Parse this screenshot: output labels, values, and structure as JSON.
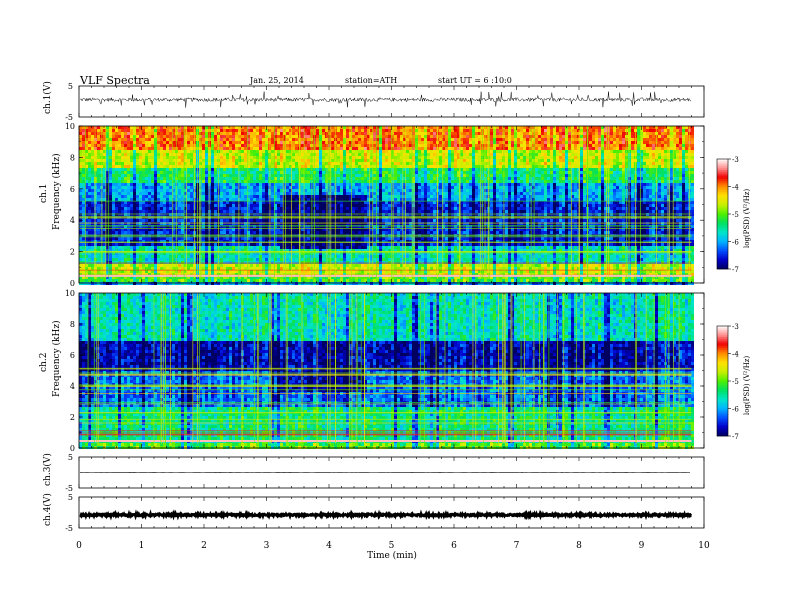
{
  "header": {
    "title": "VLF  Spectra",
    "date": "Jan. 25, 2014",
    "station": "station=ATH",
    "start": "start  UT  =   6  :10:0"
  },
  "chart_data": [
    {
      "type": "line",
      "panel": "ch1",
      "ylabel": "ch.1(V)",
      "ylim": [
        -5,
        5
      ],
      "yticks": [
        "5",
        "-5"
      ],
      "x_range_min": [
        0,
        9.8
      ],
      "baseline_v": 0.6,
      "noise_amplitude_v": 0.6
    },
    {
      "type": "heatmap",
      "panel": "spec1",
      "ylabel": "ch.1\nFrequency (kHz)",
      "ylim": [
        0,
        10
      ],
      "yticks": [
        "0",
        "2",
        "4",
        "6",
        "8",
        "10"
      ],
      "x_range_min": [
        0,
        9.8
      ],
      "colorbar": {
        "label": "log(PSD) (V²/Hz)",
        "range": [
          -7,
          -3
        ],
        "ticks": [
          "-3",
          "-4",
          "-5",
          "-6",
          "-7"
        ]
      },
      "bands_khz": [
        {
          "from": 0,
          "to": 0.4,
          "level": -5.0
        },
        {
          "from": 0.4,
          "to": 1.2,
          "level": -4.6
        },
        {
          "from": 1.2,
          "to": 2.4,
          "level": -5.6
        },
        {
          "from": 2.4,
          "to": 5.2,
          "level": -6.5
        },
        {
          "from": 5.2,
          "to": 6.4,
          "level": -6.0
        },
        {
          "from": 6.4,
          "to": 7.4,
          "level": -5.3
        },
        {
          "from": 7.4,
          "to": 8.5,
          "level": -4.6
        },
        {
          "from": 8.5,
          "to": 10,
          "level": -3.9
        }
      ],
      "event": {
        "from_min": 3.2,
        "to_min": 4.6,
        "from_khz": 2.2,
        "to_khz": 5.6,
        "level": -6.9
      }
    },
    {
      "type": "heatmap",
      "panel": "spec2",
      "ylabel": "ch.2\nFrequency (kHz)",
      "ylim": [
        0,
        10
      ],
      "yticks": [
        "0",
        "2",
        "4",
        "6",
        "8",
        "10"
      ],
      "x_range_min": [
        0,
        9.8
      ],
      "colorbar": {
        "label": "log(PSD) (V²/Hz)",
        "range": [
          -7,
          -3
        ],
        "ticks": [
          "-3",
          "-4",
          "-5",
          "-6",
          "-7"
        ]
      },
      "bands_khz": [
        {
          "from": 0,
          "to": 0.4,
          "level": -5.0
        },
        {
          "from": 0.4,
          "to": 2.6,
          "level": -5.4
        },
        {
          "from": 2.6,
          "to": 5.0,
          "level": -6.2
        },
        {
          "from": 5.0,
          "to": 7.0,
          "level": -6.7
        },
        {
          "from": 7.0,
          "to": 10,
          "level": -5.6
        }
      ],
      "event": {
        "from_min": 3.2,
        "to_min": 4.6,
        "from_khz": 3.6,
        "to_khz": 5.0,
        "level": -6.8
      }
    },
    {
      "type": "line",
      "panel": "ch3",
      "ylabel": "ch.3(V)",
      "ylim": [
        -5,
        5
      ],
      "yticks": [
        "5",
        "-5"
      ],
      "x_range_min": [
        0,
        9.8
      ],
      "baseline_v": 0.0,
      "noise_amplitude_v": 0.05
    },
    {
      "type": "line",
      "panel": "ch4",
      "ylabel": "ch.4(V)",
      "ylim": [
        -5,
        5
      ],
      "yticks": [
        "5",
        "-5"
      ],
      "x_range_min": [
        0,
        9.8
      ],
      "baseline_v": -0.8,
      "noise_amplitude_v": 0.3
    }
  ],
  "xaxis": {
    "label": "Time  (min)",
    "range": [
      0,
      10
    ],
    "ticks": [
      "0",
      "1",
      "2",
      "3",
      "4",
      "5",
      "6",
      "7",
      "8",
      "9",
      "10"
    ]
  },
  "colors": {
    "ramp": [
      "#000060",
      "#0000c8",
      "#0050ff",
      "#00b4ff",
      "#00e6c8",
      "#00e060",
      "#50f000",
      "#c8f000",
      "#ffe000",
      "#ff8c00",
      "#f00000",
      "#ff9090",
      "#ffffff"
    ]
  }
}
